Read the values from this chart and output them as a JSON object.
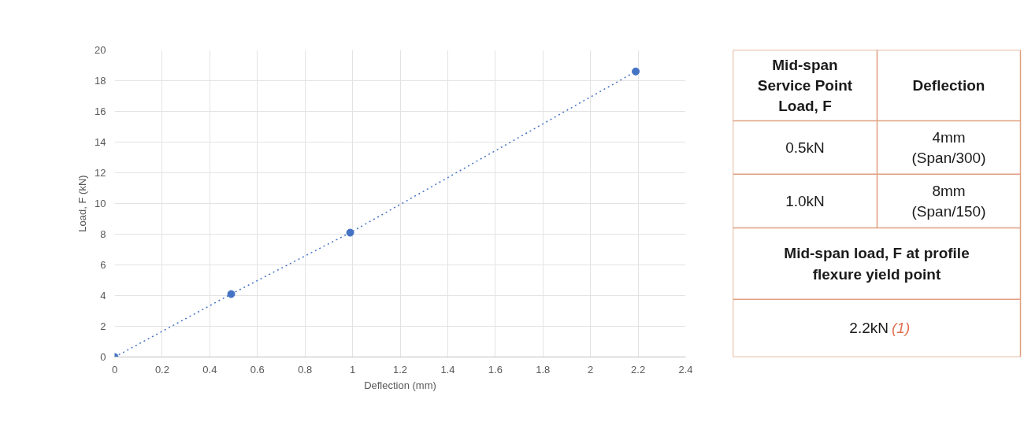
{
  "chart_data": [
    {
      "type": "line",
      "xlabel": "Deflection (mm)",
      "ylabel": "Load, F (kN)",
      "marker": "circle",
      "line_style": "dotted",
      "grid": true,
      "series": [
        {
          "color": "#4472c4",
          "x": [
            0,
            0.49,
            0.99,
            2.19
          ],
          "values": [
            0,
            4.1,
            8.1,
            18.6
          ]
        }
      ],
      "xlim": [
        0,
        2.4
      ],
      "ylim": [
        0,
        20
      ],
      "xticks": [
        0,
        0.2,
        0.4,
        0.6,
        0.8,
        1,
        1.2,
        1.4,
        1.6,
        1.8,
        2,
        2.2,
        2.4
      ],
      "yticks": [
        0,
        2,
        4,
        6,
        8,
        10,
        12,
        14,
        16,
        18,
        20
      ]
    },
    {
      "type": "other",
      "annotations": [
        "Mid-span Service Point Load, F",
        "Deflection",
        "0.5kN",
        "4mm (Span/300)",
        "1.0kN",
        "8mm (Span/150)",
        "Mid-span load, F at profile flexure yield point",
        "2.2kN",
        "(1)"
      ]
    }
  ]
}
